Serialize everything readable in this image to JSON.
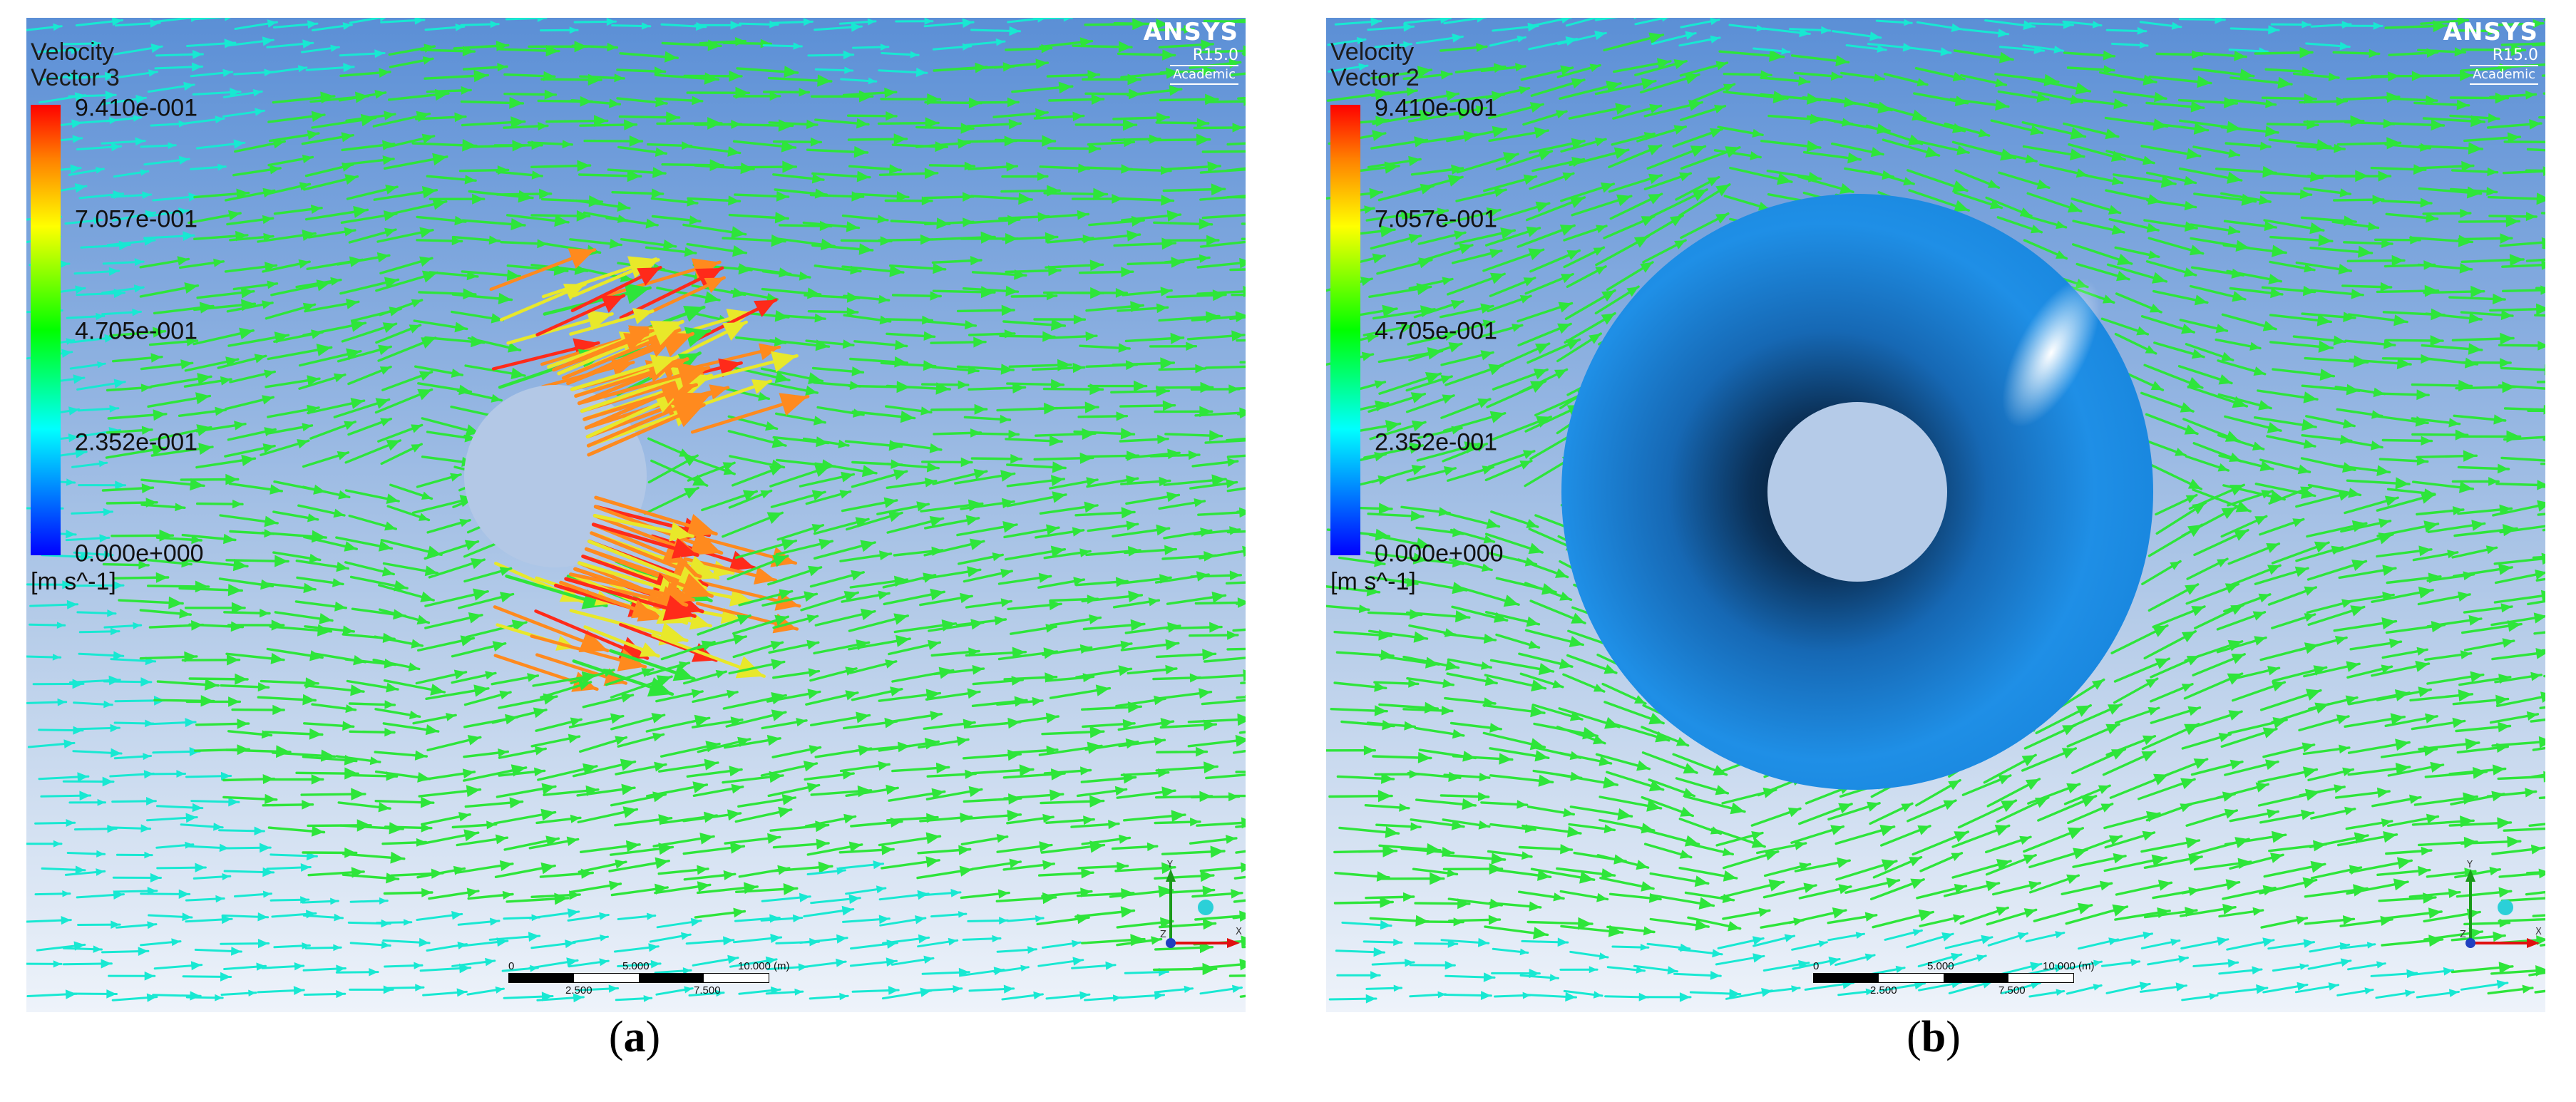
{
  "logo": {
    "brand": "ANSYS",
    "version": "R15.0",
    "edition": "Academic"
  },
  "legend": {
    "variable": "Velocity",
    "ticks": [
      "9.410e-001",
      "7.057e-001",
      "4.705e-001",
      "2.352e-001",
      "0.000e+000"
    ],
    "units": "[m s^-1]"
  },
  "scale_bar": {
    "labels_top": [
      "0",
      "5.000",
      "10.000"
    ],
    "unit": "(m)",
    "labels_bottom": [
      "2.500",
      "7.500"
    ]
  },
  "axes": {
    "x": "X",
    "y": "Y",
    "z": "Z"
  },
  "panels": [
    {
      "vector_name": "Vector 3",
      "caption": {
        "open": "(",
        "letter": "a",
        "close": ")"
      }
    },
    {
      "vector_name": "Vector 2",
      "caption": {
        "open": "(",
        "letter": "b",
        "close": ")"
      }
    }
  ],
  "colors": {
    "cyan": "#18e8d2",
    "green": "#2ee53a",
    "yellow": "#e8e82a",
    "orange": "#ff8a1e",
    "red": "#ff2a1a",
    "torus": "#1f8fe6"
  }
}
